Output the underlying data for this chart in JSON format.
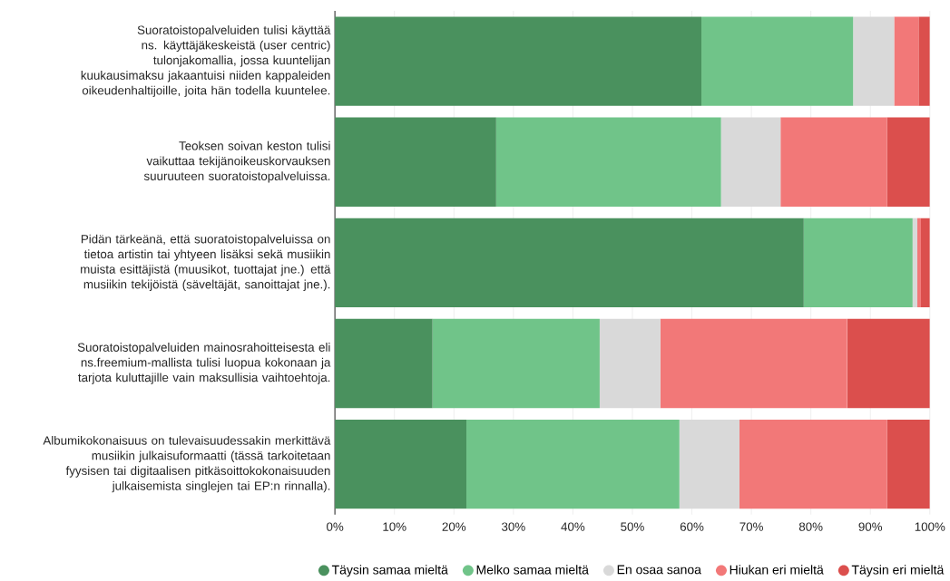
{
  "chart_data": {
    "type": "bar",
    "orientation": "horizontal",
    "stacked": true,
    "categories": [
      "Suoratoistopalveluiden tulisi käyttää ns. käyttäjäkeskeistä (user centric) tulonjakomallia, jossa kuuntelijan kuukausimaksu jakaantuisi niiden kappaleiden oikeudenhaltijoille, joita hän todella kuuntelee.",
      "Teoksen soivan keston tulisi vaikuttaa tekijänoikeuskorvauksen suuruuteen suoratoistopalveluissa.",
      "Pidän tärkeänä, että suoratoistopalveluissa on tietoa artistin tai yhtyeen lisäksi sekä musiikin muista esittäjistä (muusikot, tuottajat jne.) että musiikin tekijöistä (säveltäjät, sanoittajat jne.).",
      "Suoratoistopalveluiden mainosrahoitteisesta eli ns.freemium-mallista tulisi luopua kokonaan ja tarjota kuluttajille vain maksullisia vaihtoehtoja.",
      "Albumikokonaisuus on tulevaisuudessakin merkittävä musiikin julkaisuformaatti (tässä tarkoitetaan fyysisen tai digitaalisen pitkäsoittokokonaisuuden julkaisemista singlejen tai EP:n rinnalla)."
    ],
    "series": [
      {
        "name": "Täysin samaa mieltä",
        "color": "#4a915e",
        "values": [
          61.6,
          27.1,
          78.8,
          16.4,
          22.1
        ]
      },
      {
        "name": "Melko samaa mieltä",
        "color": "#70c489",
        "values": [
          25.5,
          37.8,
          18.3,
          28.1,
          35.8
        ]
      },
      {
        "name": "En osaa sanoa",
        "color": "#d9d9d9",
        "values": [
          6.9,
          10.0,
          0.8,
          10.2,
          10.1
        ]
      },
      {
        "name": "Hiukan eri mieltä",
        "color": "#f27878",
        "values": [
          4.1,
          17.9,
          0.6,
          31.4,
          24.8
        ]
      },
      {
        "name": "Täysin eri mieltä",
        "color": "#db4f4d",
        "values": [
          1.9,
          7.2,
          1.5,
          13.9,
          7.2
        ]
      }
    ],
    "xlim": [
      0,
      100
    ],
    "xticks": [
      {
        "value": 0,
        "label": "0%"
      },
      {
        "value": 10,
        "label": "10%"
      },
      {
        "value": 20,
        "label": "20%"
      },
      {
        "value": 30,
        "label": "30%"
      },
      {
        "value": 40,
        "label": "40%"
      },
      {
        "value": 50,
        "label": "50%"
      },
      {
        "value": 60,
        "label": "60%"
      },
      {
        "value": 70,
        "label": "70%"
      },
      {
        "value": 80,
        "label": "80%"
      },
      {
        "value": 90,
        "label": "90%"
      },
      {
        "value": 100,
        "label": "100%"
      }
    ],
    "grid": "x",
    "legend": "bottom"
  }
}
